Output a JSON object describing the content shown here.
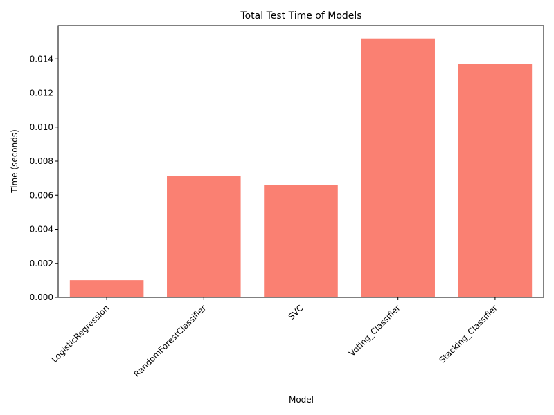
{
  "chart_data": {
    "type": "bar",
    "title": "Total Test Time of Models",
    "xlabel": "Model",
    "ylabel": "Time (seconds)",
    "categories": [
      "LogisticRegression",
      "RandomForestClassifier",
      "SVC",
      "Voting_Classifier",
      "Stacking_Classifier"
    ],
    "values": [
      0.00101,
      0.00711,
      0.0066,
      0.0152,
      0.0137
    ],
    "ylim": [
      0,
      0.01596
    ],
    "yticks": [
      0.0,
      0.002,
      0.004,
      0.006,
      0.008,
      0.01,
      0.012,
      0.014
    ],
    "ytick_labels": [
      "0.000",
      "0.002",
      "0.004",
      "0.006",
      "0.008",
      "0.010",
      "0.012",
      "0.014"
    ],
    "xtick_rotation_deg": 45,
    "bar_color": "#fa8072",
    "grid": false,
    "legend": "none"
  }
}
